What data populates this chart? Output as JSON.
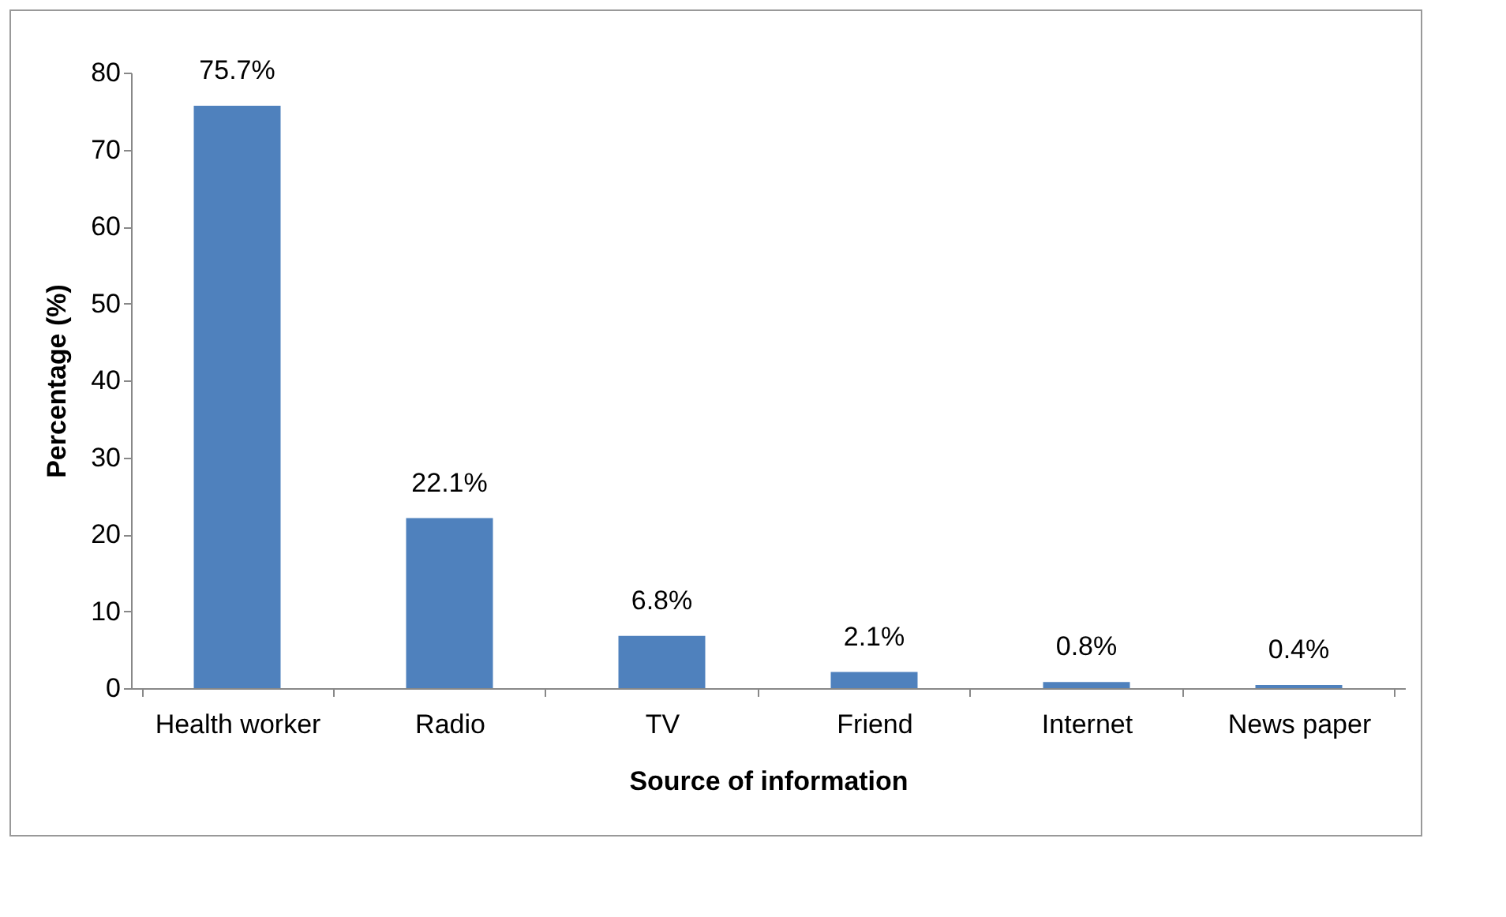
{
  "chart_data": {
    "type": "bar",
    "xlabel": "Source of information",
    "ylabel": "Percentage (%)",
    "categories": [
      "Health worker",
      "Radio",
      "TV",
      "Friend",
      "Internet",
      "News paper"
    ],
    "values": [
      75.7,
      22.1,
      6.8,
      2.1,
      0.8,
      0.4
    ],
    "value_labels": [
      "75.7%",
      "22.1%",
      "6.8%",
      "2.1%",
      "0.8%",
      "0.4%"
    ],
    "color": "#4f81bd",
    "ylim": [
      0,
      80
    ],
    "yticks": [
      0,
      10,
      20,
      30,
      40,
      50,
      60,
      70,
      80
    ]
  }
}
